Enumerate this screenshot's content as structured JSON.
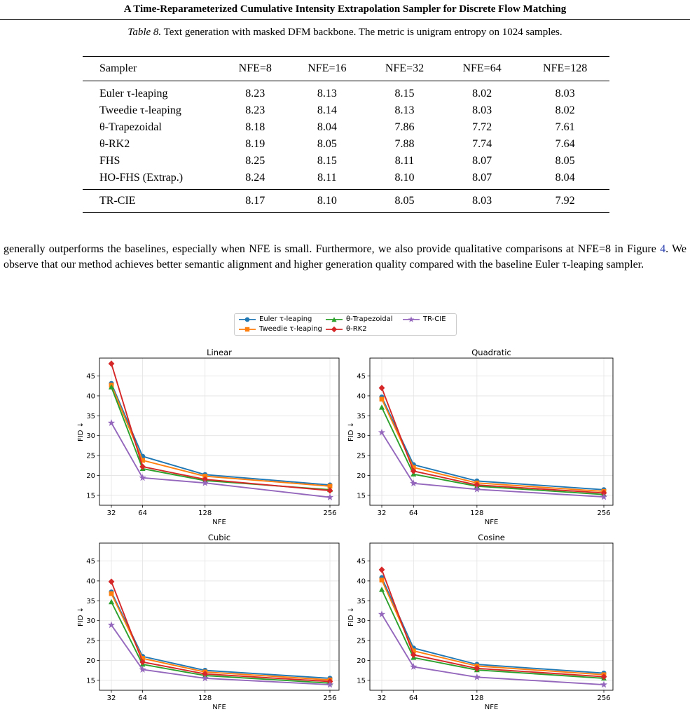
{
  "header": {
    "title": "A Time-Reparameterized Cumulative Intensity Extrapolation Sampler for Discrete Flow Matching"
  },
  "table": {
    "caption_label": "Table 8.",
    "caption_text": "Text generation with masked DFM backbone. The metric is unigram entropy on 1024 samples.",
    "columns": [
      "Sampler",
      "NFE=8",
      "NFE=16",
      "NFE=32",
      "NFE=64",
      "NFE=128"
    ],
    "rows": [
      {
        "name": "Euler τ-leaping",
        "values": [
          "8.23",
          "8.13",
          "8.15",
          "8.02",
          "8.03"
        ]
      },
      {
        "name": "Tweedie τ-leaping",
        "values": [
          "8.23",
          "8.14",
          "8.13",
          "8.03",
          "8.02"
        ]
      },
      {
        "name": "θ-Trapezoidal",
        "values": [
          "8.18",
          "8.04",
          "7.86",
          "7.72",
          "7.61"
        ]
      },
      {
        "name": "θ-RK2",
        "values": [
          "8.19",
          "8.05",
          "7.88",
          "7.74",
          "7.64"
        ]
      },
      {
        "name": "FHS",
        "values": [
          "8.25",
          "8.15",
          "8.11",
          "8.07",
          "8.05"
        ]
      },
      {
        "name": "HO-FHS (Extrap.)",
        "values": [
          "8.24",
          "8.11",
          "8.10",
          "8.07",
          "8.04"
        ]
      }
    ],
    "ours": {
      "name": "TR-CIE",
      "values": [
        "8.17",
        "8.10",
        "8.05",
        "8.03",
        "7.92"
      ]
    }
  },
  "paragraph": {
    "text_before": "generally outperforms the baselines, especially when NFE is small. Furthermore, we also provide qualitative comparisons at NFE=8 in Figure ",
    "fig_ref": "4",
    "text_after": ". We observe that our method achieves better semantic alignment and higher generation quality compared with the baseline Euler τ-leaping sampler."
  },
  "colors": {
    "euler": "#1f77b4",
    "tweedie": "#ff7f0e",
    "trap": "#2ca02c",
    "rk2": "#d62728",
    "trcie": "#9467bd",
    "link": "#2a3fb0"
  },
  "legend": [
    {
      "label": "Euler τ-leaping",
      "marker": "circle",
      "color": "#1f77b4"
    },
    {
      "label": "Tweedie τ-leaping",
      "marker": "square",
      "color": "#ff7f0e"
    },
    {
      "label": "θ-Trapezoidal",
      "marker": "triangle",
      "color": "#2ca02c"
    },
    {
      "label": "θ-RK2",
      "marker": "diamond",
      "color": "#d62728"
    },
    {
      "label": "TR-CIE",
      "marker": "star",
      "color": "#9467bd"
    }
  ],
  "chart_data": [
    {
      "type": "line",
      "title": "Linear",
      "xlabel": "NFE",
      "ylabel": "FID ↓",
      "x": [
        32,
        64,
        128,
        256
      ],
      "xticks": [
        "32",
        "64",
        "128",
        "256"
      ],
      "yticks": [
        "15",
        "20",
        "25",
        "30",
        "35",
        "40",
        "45"
      ],
      "ylim": [
        12.5,
        49.5
      ],
      "grid": true,
      "series": [
        {
          "name": "Euler τ-leaping",
          "values": [
            43.1,
            24.8,
            20.2,
            17.6
          ]
        },
        {
          "name": "Tweedie τ-leaping",
          "values": [
            42.7,
            23.8,
            19.8,
            17.3
          ]
        },
        {
          "name": "θ-Trapezoidal",
          "values": [
            42.2,
            21.7,
            18.7,
            16.4
          ]
        },
        {
          "name": "θ-RK2",
          "values": [
            48.1,
            22.2,
            19.0,
            16.2
          ]
        },
        {
          "name": "TR-CIE",
          "values": [
            33.2,
            19.4,
            18.1,
            14.5
          ]
        }
      ]
    },
    {
      "type": "line",
      "title": "Quadratic",
      "xlabel": "NFE",
      "ylabel": "FID ↓",
      "x": [
        32,
        64,
        128,
        256
      ],
      "xticks": [
        "32",
        "64",
        "128",
        "256"
      ],
      "yticks": [
        "15",
        "20",
        "25",
        "30",
        "35",
        "40",
        "45"
      ],
      "ylim": [
        12.5,
        49.5
      ],
      "grid": true,
      "series": [
        {
          "name": "Euler τ-leaping",
          "values": [
            39.7,
            22.7,
            18.6,
            16.4
          ]
        },
        {
          "name": "Tweedie τ-leaping",
          "values": [
            39.2,
            22.0,
            18.1,
            16.0
          ]
        },
        {
          "name": "θ-Trapezoidal",
          "values": [
            37.1,
            20.3,
            17.3,
            15.2
          ]
        },
        {
          "name": "θ-RK2",
          "values": [
            42.0,
            21.1,
            17.6,
            15.6
          ]
        },
        {
          "name": "TR-CIE",
          "values": [
            30.8,
            18.0,
            16.5,
            14.6
          ]
        }
      ]
    },
    {
      "type": "line",
      "title": "Cubic",
      "xlabel": "NFE",
      "ylabel": "FID ↓",
      "x": [
        32,
        64,
        128,
        256
      ],
      "xticks": [
        "32",
        "64",
        "128",
        "256"
      ],
      "yticks": [
        "15",
        "20",
        "25",
        "30",
        "35",
        "40",
        "45"
      ],
      "ylim": [
        12.5,
        49.5
      ],
      "grid": true,
      "series": [
        {
          "name": "Euler τ-leaping",
          "values": [
            37.2,
            21.0,
            17.5,
            15.5
          ]
        },
        {
          "name": "Tweedie τ-leaping",
          "values": [
            36.8,
            20.5,
            17.1,
            15.1
          ]
        },
        {
          "name": "θ-Trapezoidal",
          "values": [
            34.7,
            19.0,
            16.2,
            14.3
          ]
        },
        {
          "name": "θ-RK2",
          "values": [
            39.8,
            19.6,
            16.6,
            14.7
          ]
        },
        {
          "name": "TR-CIE",
          "values": [
            28.9,
            17.7,
            15.5,
            13.9
          ]
        }
      ]
    },
    {
      "type": "line",
      "title": "Cosine",
      "xlabel": "NFE",
      "ylabel": "FID ↓",
      "x": [
        32,
        64,
        128,
        256
      ],
      "xticks": [
        "32",
        "64",
        "128",
        "256"
      ],
      "yticks": [
        "15",
        "20",
        "25",
        "30",
        "35",
        "40",
        "45"
      ],
      "ylim": [
        12.5,
        49.5
      ],
      "grid": true,
      "series": [
        {
          "name": "Euler τ-leaping",
          "values": [
            40.8,
            23.1,
            19.0,
            16.8
          ]
        },
        {
          "name": "Tweedie τ-leaping",
          "values": [
            40.2,
            22.4,
            18.6,
            16.4
          ]
        },
        {
          "name": "θ-Trapezoidal",
          "values": [
            37.8,
            20.7,
            17.6,
            15.5
          ]
        },
        {
          "name": "θ-RK2",
          "values": [
            42.8,
            21.4,
            18.0,
            15.9
          ]
        },
        {
          "name": "TR-CIE",
          "values": [
            31.6,
            18.4,
            15.8,
            13.9
          ]
        }
      ]
    }
  ]
}
